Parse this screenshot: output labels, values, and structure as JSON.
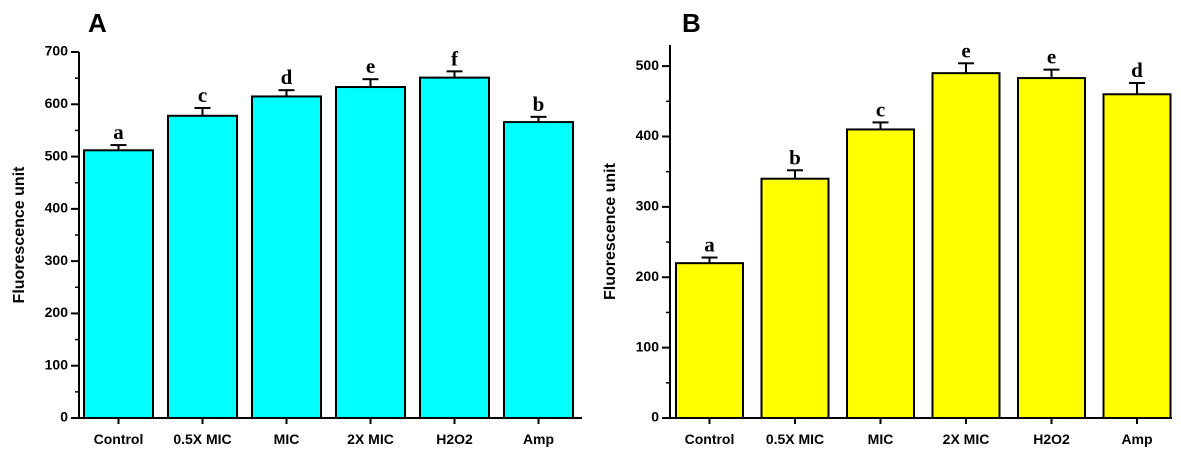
{
  "chart_data": [
    {
      "panel": "A",
      "type": "bar",
      "ylabel": "Fluorescence unit",
      "xlabel": "",
      "ylim": [
        0,
        700
      ],
      "yticks": [
        0,
        100,
        200,
        300,
        400,
        500,
        600,
        700
      ],
      "categories": [
        "Control",
        "0.5X MIC",
        "MIC",
        "2X MIC",
        "H2O2",
        "Amp"
      ],
      "values": [
        512,
        578,
        615,
        633,
        651,
        566
      ],
      "errors": [
        10,
        15,
        12,
        15,
        12,
        10
      ],
      "significance": [
        "a",
        "c",
        "d",
        "e",
        "f",
        "b"
      ],
      "bar_color": "#00FFFF"
    },
    {
      "panel": "B",
      "type": "bar",
      "ylabel": "Fluorescence unit",
      "xlabel": "",
      "ylim": [
        0,
        530
      ],
      "yticks": [
        0,
        100,
        200,
        300,
        400,
        500
      ],
      "categories": [
        "Control",
        "0.5X MIC",
        "MIC",
        "2X MIC",
        "H2O2",
        "Amp"
      ],
      "values": [
        220,
        340,
        410,
        490,
        483,
        460
      ],
      "errors": [
        8,
        12,
        10,
        14,
        12,
        16
      ],
      "significance": [
        "a",
        "b",
        "c",
        "e",
        "e",
        "d"
      ],
      "bar_color": "#FFFF00"
    }
  ]
}
